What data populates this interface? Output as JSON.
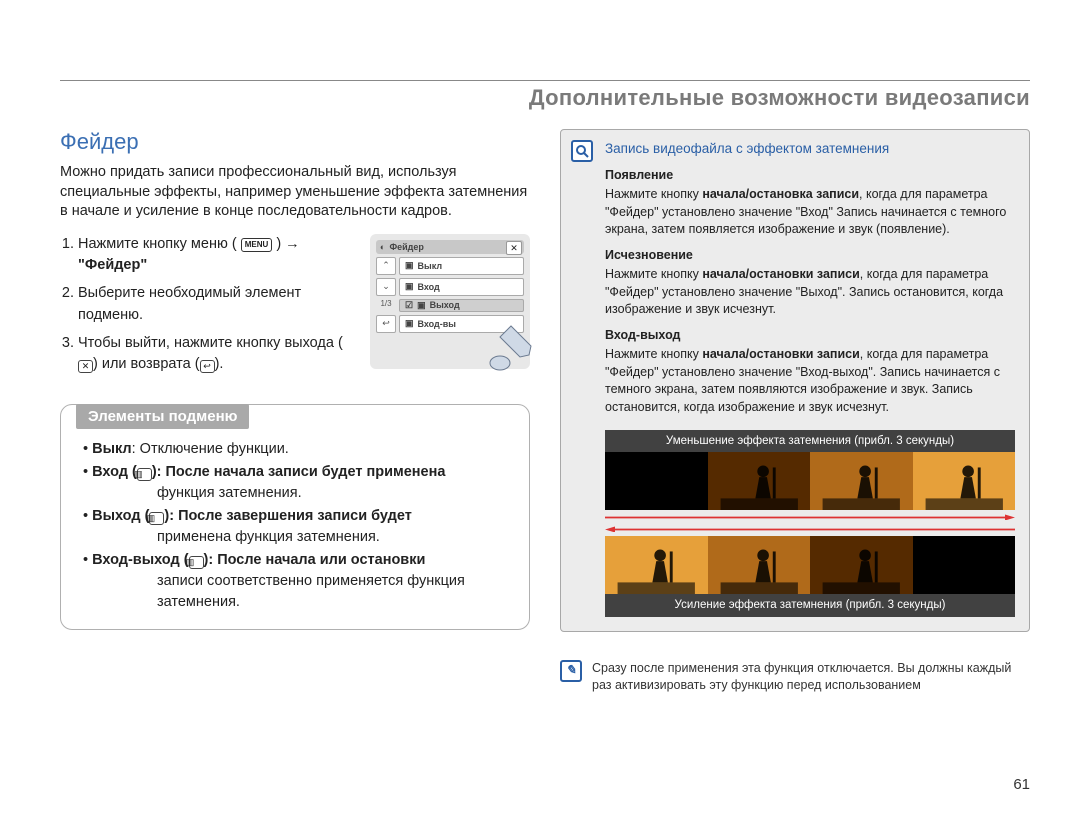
{
  "header": {
    "title": "Дополнительные возможности видеозаписи"
  },
  "section": {
    "title": "Фейдер",
    "intro": "Можно придать записи профессиональный вид, используя специальные эффекты, например уменьшение эффекта затемнения в начале и усиление в конце последовательности кадров."
  },
  "steps": {
    "s1a": "Нажмите кнопку меню (",
    "s1_menu": "MENU",
    "s1b": ") →",
    "s1_q": "\"Фейдер\"",
    "s2": "Выберите необходимый элемент подменю.",
    "s3a": "Чтобы выйти, нажмите кнопку выхода (",
    "s3b": ") или возврата (",
    "s3c": ")."
  },
  "lcd": {
    "title": "Фейдер",
    "items": [
      "Выкл",
      "Вход",
      "Выход",
      "Вход-вы"
    ],
    "pager": "1/3"
  },
  "submenu": {
    "heading": "Элементы подменю",
    "b1a": "Выкл",
    "b1b": ": Отключение функции.",
    "b2a": "Вход (",
    "b2b": "): После начала записи будет применена",
    "b2c": "функция затемнения.",
    "b3a": "Выход (",
    "b3b": "): После завершения записи будет",
    "b3c": "применена функция затемнения.",
    "b4a": "Вход-выход (",
    "b4b": "): После начала или остановки",
    "b4c": "записи соответственно применяется функция затемнения."
  },
  "infobox": {
    "title": "Запись видеофайла с эффектом затемнения",
    "h1": "Появление",
    "p1a": "Нажмите кнопку ",
    "p1b": "начала/остановка записи",
    "p1c": ", когда для параметра \"Фейдер\" установлено значение \"Вход\" Запись начинается с темного экрана, затем появляется изображение и звук (появление).",
    "h2": "Исчезновение",
    "p2a": "Нажмите кнопку ",
    "p2b": "начала/остановки записи",
    "p2c": ", когда для параметра \"Фейдер\" установлено значение \"Выход\". Запись остановится, когда изображение и звук исчезнут.",
    "h3": "Вход-выход",
    "p3a": "Нажмите кнопку ",
    "p3b": "начала/остановки записи",
    "p3c": ", когда для параметра \"Фейдер\" установлено значение \"Вход-выход\". Запись начинается с темного экрана, затем появляются изображение и звук. Запись остановится, когда изображение и звук исчезнут.",
    "fade_in_caption": "Уменьшение эффекта затемнения (прибл. 3 секунды)",
    "fade_out_caption": "Усиление эффекта затемнения (прибл. 3 секунды)"
  },
  "fade_frames": {
    "in": [
      "#000000",
      "#552a00",
      "#b06a1a",
      "#e6a03a"
    ],
    "out": [
      "#e6a03a",
      "#b06a1a",
      "#552a00",
      "#000000"
    ]
  },
  "note": {
    "text": "Сразу после применения эта функция отключается. Вы должны каждый раз активизировать эту функцию перед использованием"
  },
  "page_number": "61",
  "colors": {
    "accent_blue": "#3b6fb3",
    "panel_border": "#b0b0b0",
    "gray_tab": "#a9a9a9"
  }
}
